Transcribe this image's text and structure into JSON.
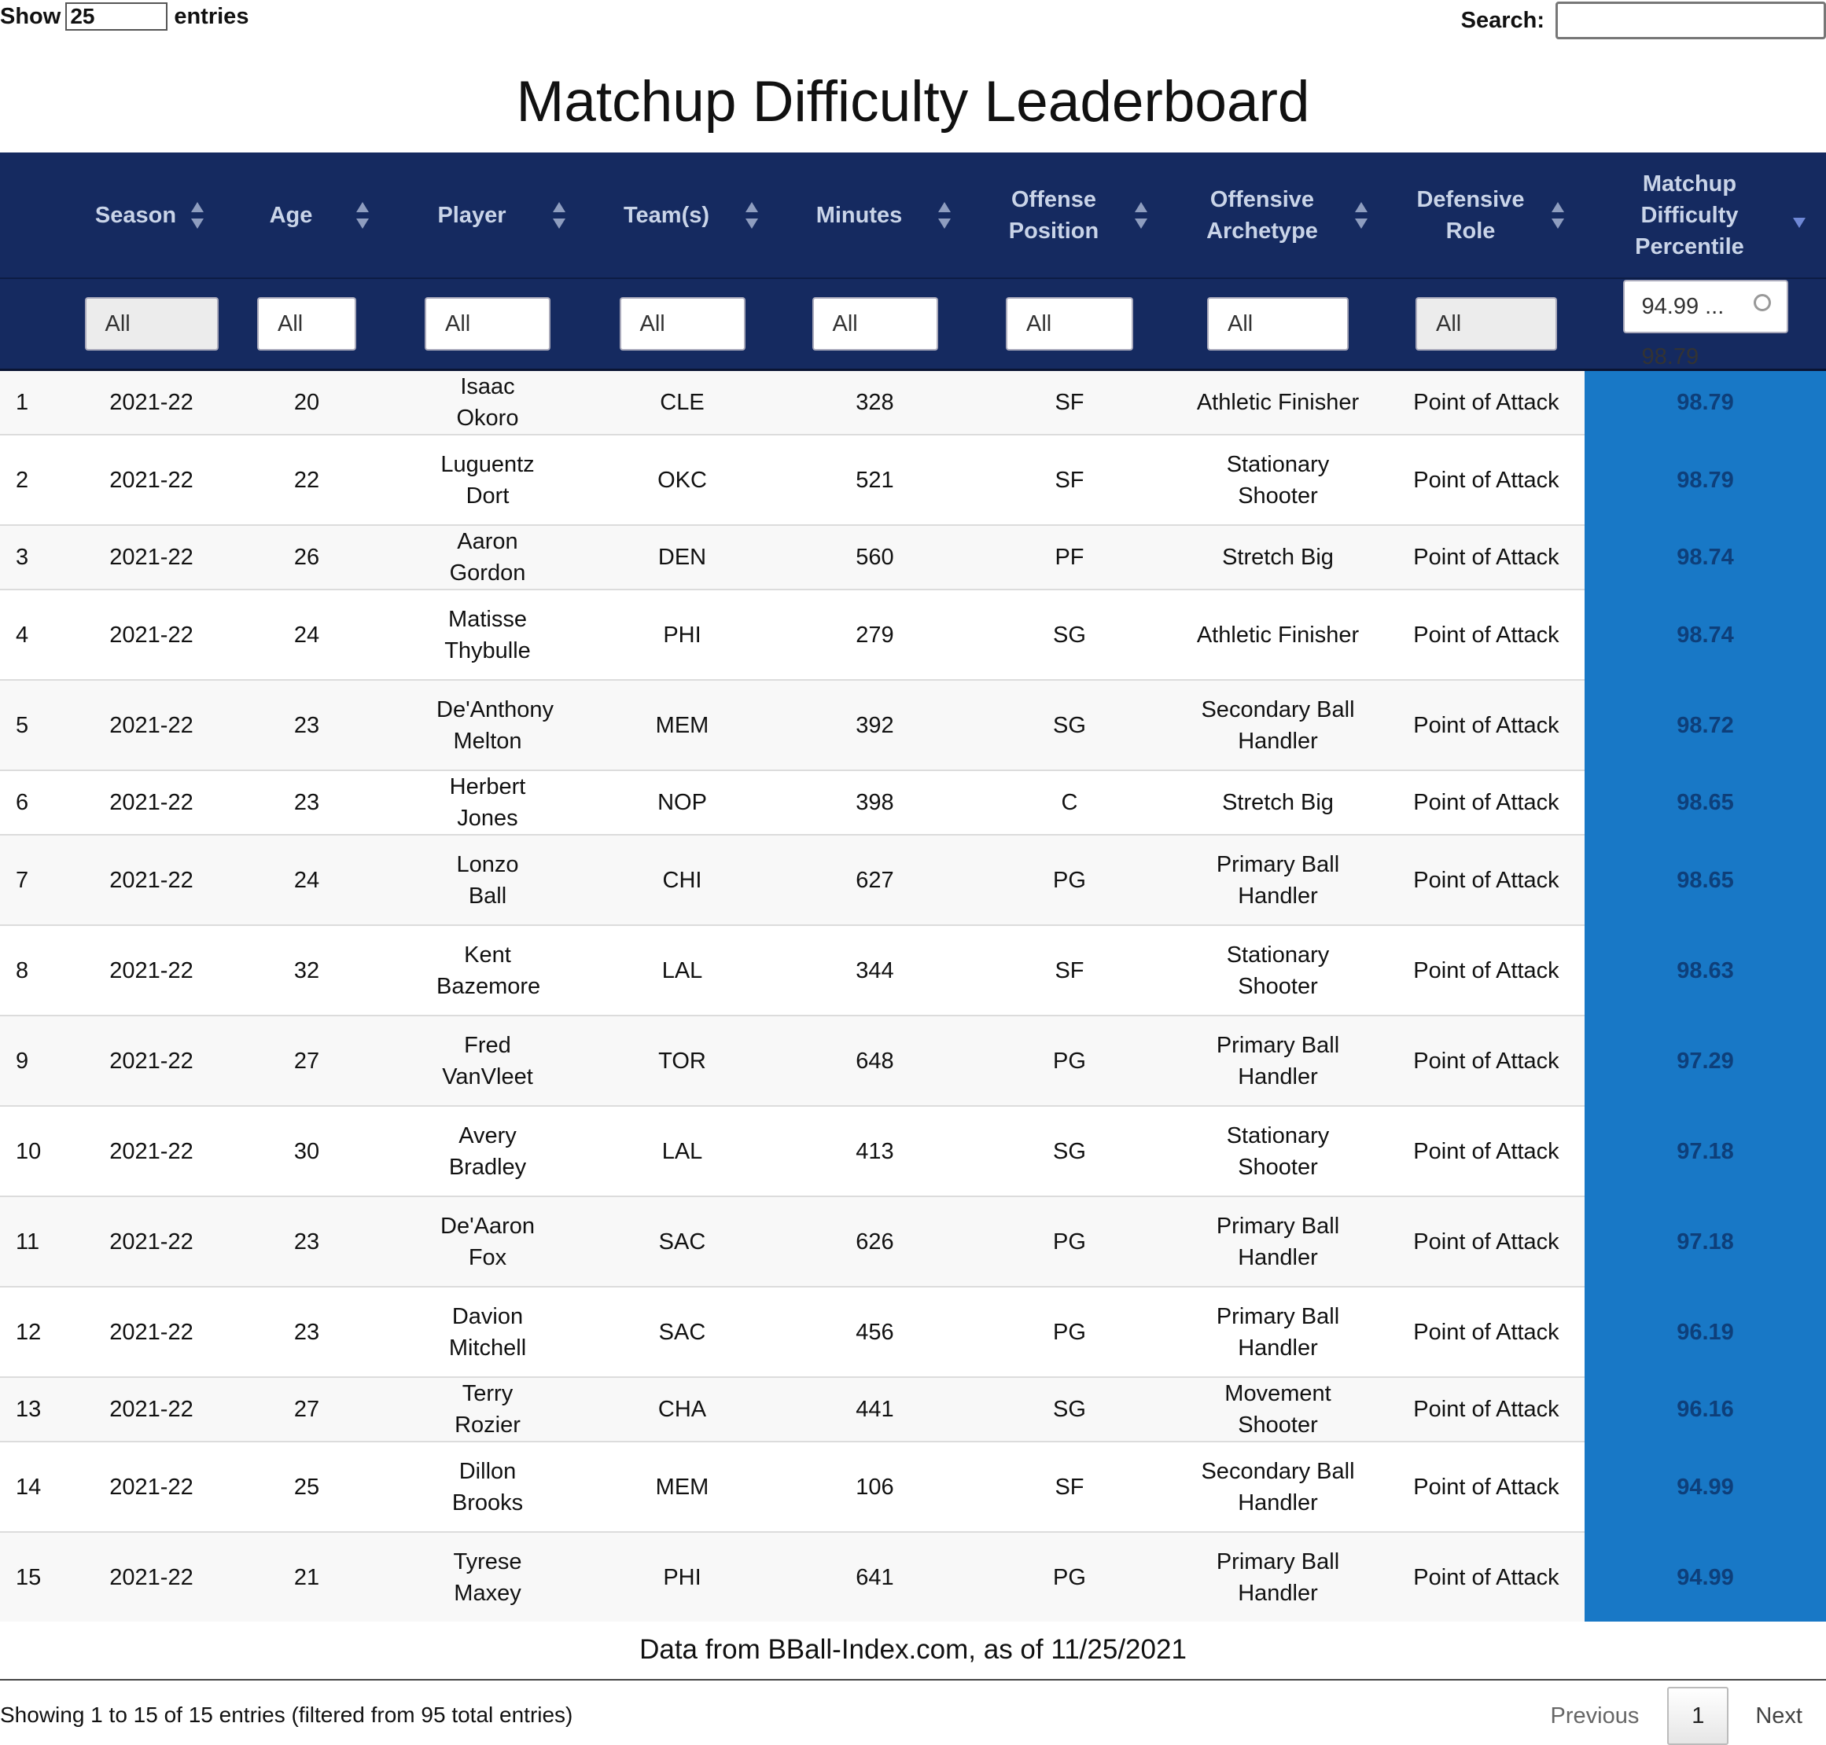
{
  "controls": {
    "show_label": "Show",
    "entries_value": "25",
    "entries_label": "entries",
    "search_label": "Search:",
    "search_value": ""
  },
  "title": "Matchup Difficulty Leaderboard",
  "columns": [
    {
      "label": "",
      "sortable": false
    },
    {
      "label": "Season",
      "sortable": true
    },
    {
      "label": "Age",
      "sortable": true
    },
    {
      "label": "Player",
      "sortable": true
    },
    {
      "label": "Team(s)",
      "sortable": true
    },
    {
      "label": "Minutes",
      "sortable": true
    },
    {
      "label": "Offense Position",
      "sortable": true
    },
    {
      "label": "Offensive Archetype",
      "sortable": true
    },
    {
      "label": "Defensive Role",
      "sortable": true
    },
    {
      "label": "Matchup Difficulty Percentile",
      "sortable": true,
      "sorted": "desc"
    }
  ],
  "filters": [
    "",
    "All",
    "All",
    "All",
    "All",
    "All",
    "All",
    "All",
    "All",
    "94.99 ... 98.79"
  ],
  "rows": [
    [
      "1",
      "2021-22",
      "20",
      "Isaac Okoro",
      "CLE",
      "328",
      "SF",
      "Athletic Finisher",
      "Point of Attack",
      "98.79"
    ],
    [
      "2",
      "2021-22",
      "22",
      "Luguentz Dort",
      "OKC",
      "521",
      "SF",
      "Stationary Shooter",
      "Point of Attack",
      "98.79"
    ],
    [
      "3",
      "2021-22",
      "26",
      "Aaron Gordon",
      "DEN",
      "560",
      "PF",
      "Stretch Big",
      "Point of Attack",
      "98.74"
    ],
    [
      "4",
      "2021-22",
      "24",
      "Matisse Thybulle",
      "PHI",
      "279",
      "SG",
      "Athletic Finisher",
      "Point of Attack",
      "98.74"
    ],
    [
      "5",
      "2021-22",
      "23",
      "De'Anthony Melton",
      "MEM",
      "392",
      "SG",
      "Secondary Ball Handler",
      "Point of Attack",
      "98.72"
    ],
    [
      "6",
      "2021-22",
      "23",
      "Herbert Jones",
      "NOP",
      "398",
      "C",
      "Stretch Big",
      "Point of Attack",
      "98.65"
    ],
    [
      "7",
      "2021-22",
      "24",
      "Lonzo Ball",
      "CHI",
      "627",
      "PG",
      "Primary Ball Handler",
      "Point of Attack",
      "98.65"
    ],
    [
      "8",
      "2021-22",
      "32",
      "Kent Bazemore",
      "LAL",
      "344",
      "SF",
      "Stationary Shooter",
      "Point of Attack",
      "98.63"
    ],
    [
      "9",
      "2021-22",
      "27",
      "Fred VanVleet",
      "TOR",
      "648",
      "PG",
      "Primary Ball Handler",
      "Point of Attack",
      "97.29"
    ],
    [
      "10",
      "2021-22",
      "30",
      "Avery Bradley",
      "LAL",
      "413",
      "SG",
      "Stationary Shooter",
      "Point of Attack",
      "97.18"
    ],
    [
      "11",
      "2021-22",
      "23",
      "De'Aaron Fox",
      "SAC",
      "626",
      "PG",
      "Primary Ball Handler",
      "Point of Attack",
      "97.18"
    ],
    [
      "12",
      "2021-22",
      "23",
      "Davion Mitchell",
      "SAC",
      "456",
      "PG",
      "Primary Ball Handler",
      "Point of Attack",
      "96.19"
    ],
    [
      "13",
      "2021-22",
      "27",
      "Terry Rozier",
      "CHA",
      "441",
      "SG",
      "Movement Shooter",
      "Point of Attack",
      "96.16"
    ],
    [
      "14",
      "2021-22",
      "25",
      "Dillon Brooks",
      "MEM",
      "106",
      "SF",
      "Secondary Ball Handler",
      "Point of Attack",
      "94.99"
    ],
    [
      "15",
      "2021-22",
      "21",
      "Tyrese Maxey",
      "PHI",
      "641",
      "PG",
      "Primary Ball Handler",
      "Point of Attack",
      "94.99"
    ]
  ],
  "caption": "Data from BBall-Index.com, as of 11/25/2021",
  "info": "Showing 1 to 15 of 15 entries (filtered from 95 total entries)",
  "pager": {
    "previous": "Previous",
    "page": "1",
    "next": "Next"
  },
  "colors": {
    "header_bg": "#152a60",
    "percentile_bg": "#1878c6"
  }
}
